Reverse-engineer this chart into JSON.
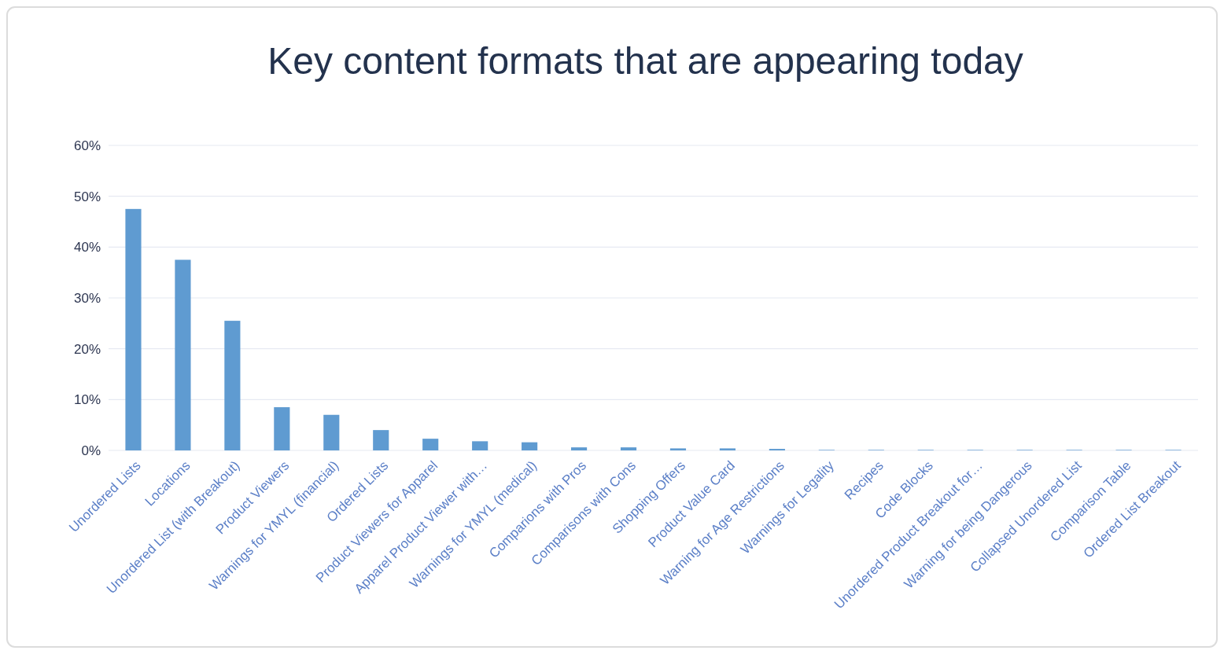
{
  "chart_data": {
    "type": "bar",
    "title": "Key content formats that are appearing today",
    "categories": [
      "Unordered Lists",
      "Locations",
      "Unordered List (with Breakout)",
      "Product Viewers",
      "Warnings for YMYL (financial)",
      "Ordered Lists",
      "Product Viewers for Apparel",
      "Apparel Product Viewer with…",
      "Warnings for YMYL (medical)",
      "Comparions with Pros",
      "Comparisons with Cons",
      "Shopping Offers",
      "Product Value Card",
      "Warning for Age Restrictions",
      "Warnings for Legality",
      "Recipes",
      "Code Blocks",
      "Unordered Product Breakout for…",
      "Warning for being Dangerous",
      "Collapsed Unordered List",
      "Comparison Table",
      "Ordered List Breakout"
    ],
    "values": [
      47.5,
      37.5,
      25.5,
      8.5,
      7,
      4,
      2.3,
      1.8,
      1.6,
      0.6,
      0.6,
      0.4,
      0.4,
      0.3,
      0.1,
      0.1,
      0.1,
      0.1,
      0.1,
      0.1,
      0.1,
      0.1
    ],
    "color": "#5f9bd1",
    "ylim": [
      0,
      60
    ],
    "yticks": [
      {
        "value": 0,
        "label": "0%"
      },
      {
        "value": 10,
        "label": "10%"
      },
      {
        "value": 20,
        "label": "20%"
      },
      {
        "value": 30,
        "label": "30%"
      },
      {
        "value": 40,
        "label": "40%"
      },
      {
        "value": 50,
        "label": "50%"
      },
      {
        "value": 60,
        "label": "60%"
      }
    ],
    "grid": "y"
  }
}
